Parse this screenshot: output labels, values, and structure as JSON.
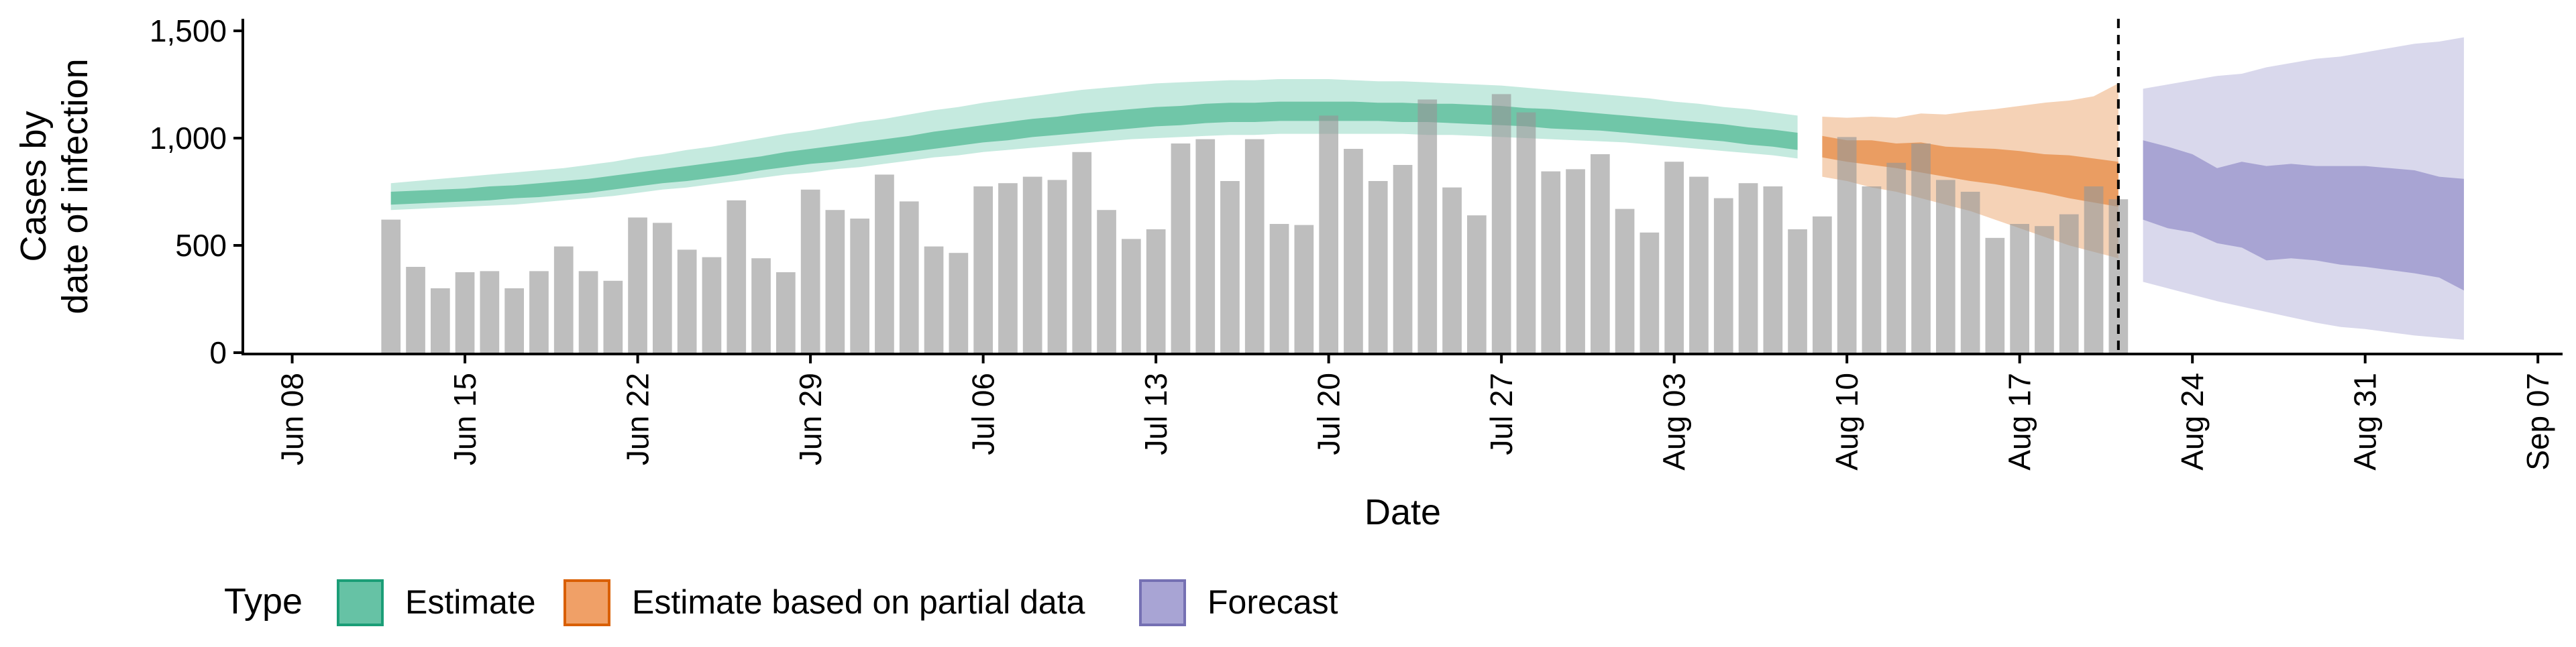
{
  "chart_data": {
    "type": "bar",
    "xlabel": "Date",
    "ylabel_lines": [
      "Cases by",
      "date of infection"
    ],
    "ylim": [
      0,
      1550
    ],
    "xlim": [
      "2020-06-06",
      "2020-09-08"
    ],
    "y_ticks": [
      0,
      500,
      1000,
      1500
    ],
    "y_tick_labels": [
      "0",
      "500",
      "1,000",
      "1,500"
    ],
    "x_ticks": [
      "2020-06-08",
      "2020-06-15",
      "2020-06-22",
      "2020-06-29",
      "2020-07-06",
      "2020-07-13",
      "2020-07-20",
      "2020-07-27",
      "2020-08-03",
      "2020-08-10",
      "2020-08-17",
      "2020-08-24",
      "2020-08-31",
      "2020-09-07"
    ],
    "x_tick_labels": [
      "Jun 08",
      "Jun 15",
      "Jun 22",
      "Jun 29",
      "Jul 06",
      "Jul 13",
      "Jul 20",
      "Jul 27",
      "Aug 03",
      "Aug 10",
      "Aug 17",
      "Aug 24",
      "Aug 31",
      "Sep 07"
    ],
    "forecast_date": "2020-08-21",
    "grid": false,
    "legend_position": "bottom",
    "legend_title": "Type",
    "legend": [
      {
        "label": "Estimate",
        "fill": "#66c2a5",
        "stroke": "#1b9e77"
      },
      {
        "label": "Estimate based on partial data",
        "fill": "#f0a067",
        "stroke": "#d95f02"
      },
      {
        "label": "Forecast",
        "fill": "#a8a4d4",
        "stroke": "#7570b3"
      }
    ],
    "bars": {
      "start_date": "2020-06-12",
      "color": "#bdbdbd",
      "values": [
        620,
        400,
        300,
        375,
        380,
        300,
        380,
        495,
        380,
        335,
        630,
        605,
        480,
        445,
        710,
        440,
        375,
        760,
        665,
        625,
        830,
        705,
        495,
        465,
        775,
        790,
        820,
        805,
        935,
        665,
        530,
        575,
        975,
        995,
        800,
        995,
        600,
        595,
        1105,
        950,
        800,
        875,
        1180,
        770,
        640,
        1205,
        1120,
        845,
        855,
        925,
        670,
        560,
        890,
        820,
        720,
        790,
        775,
        575,
        635,
        1005,
        775,
        885,
        975,
        805,
        750,
        535,
        600,
        590,
        645,
        775,
        715
      ]
    },
    "series": [
      {
        "name": "Estimate",
        "color": "#1b9e77",
        "start_date": "2020-06-12",
        "lower90": [
          665,
          670,
          675,
          680,
          685,
          690,
          700,
          710,
          720,
          730,
          745,
          760,
          770,
          785,
          800,
          815,
          830,
          840,
          855,
          865,
          880,
          895,
          910,
          920,
          935,
          945,
          955,
          965,
          975,
          985,
          995,
          1000,
          1005,
          1010,
          1015,
          1015,
          1020,
          1020,
          1020,
          1020,
          1020,
          1020,
          1015,
          1015,
          1010,
          1005,
          1000,
          995,
          990,
          985,
          980,
          970,
          960,
          950,
          940,
          930,
          920,
          905
        ],
        "lower50": [
          690,
          695,
          700,
          705,
          710,
          720,
          725,
          735,
          745,
          760,
          775,
          790,
          800,
          815,
          830,
          850,
          865,
          880,
          890,
          905,
          920,
          935,
          950,
          965,
          980,
          990,
          1005,
          1015,
          1025,
          1035,
          1045,
          1055,
          1060,
          1070,
          1075,
          1075,
          1080,
          1080,
          1080,
          1080,
          1080,
          1075,
          1075,
          1070,
          1065,
          1060,
          1055,
          1045,
          1040,
          1035,
          1025,
          1015,
          1005,
          995,
          985,
          970,
          960,
          945
        ],
        "upper50": [
          750,
          755,
          760,
          765,
          775,
          780,
          790,
          800,
          810,
          825,
          840,
          855,
          870,
          885,
          900,
          915,
          935,
          950,
          965,
          980,
          995,
          1010,
          1030,
          1045,
          1060,
          1075,
          1090,
          1100,
          1115,
          1125,
          1135,
          1145,
          1150,
          1160,
          1165,
          1165,
          1170,
          1170,
          1170,
          1170,
          1165,
          1165,
          1160,
          1160,
          1155,
          1150,
          1140,
          1135,
          1125,
          1115,
          1105,
          1095,
          1085,
          1075,
          1065,
          1050,
          1040,
          1025
        ],
        "upper90": [
          790,
          800,
          810,
          820,
          830,
          840,
          850,
          860,
          875,
          890,
          910,
          925,
          945,
          960,
          980,
          1000,
          1020,
          1035,
          1055,
          1075,
          1090,
          1110,
          1130,
          1145,
          1165,
          1180,
          1195,
          1210,
          1225,
          1235,
          1245,
          1255,
          1260,
          1265,
          1270,
          1270,
          1275,
          1275,
          1275,
          1270,
          1265,
          1265,
          1260,
          1255,
          1250,
          1245,
          1235,
          1225,
          1215,
          1205,
          1195,
          1185,
          1170,
          1160,
          1145,
          1135,
          1120,
          1105
        ]
      },
      {
        "name": "Estimate based on partial data",
        "color": "#d95f02",
        "start_date": "2020-08-09",
        "lower90": [
          820,
          800,
          770,
          750,
          720,
          690,
          660,
          620,
          580,
          540,
          500,
          470,
          440
        ],
        "lower50": [
          910,
          890,
          875,
          860,
          840,
          820,
          800,
          785,
          765,
          745,
          720,
          700,
          680
        ],
        "upper50": [
          1010,
          990,
          990,
          975,
          980,
          960,
          955,
          950,
          940,
          925,
          920,
          905,
          890
        ],
        "upper90": [
          1100,
          1095,
          1100,
          1095,
          1115,
          1110,
          1125,
          1135,
          1150,
          1165,
          1175,
          1195,
          1255
        ]
      },
      {
        "name": "Forecast",
        "color": "#7570b3",
        "start_date": "2020-08-22",
        "lower90": [
          330,
          300,
          270,
          240,
          215,
          190,
          165,
          140,
          120,
          110,
          95,
          80,
          70,
          60
        ],
        "lower50": [
          620,
          580,
          560,
          510,
          490,
          430,
          440,
          430,
          410,
          400,
          385,
          370,
          350,
          290
        ],
        "upper50": [
          990,
          960,
          925,
          860,
          890,
          870,
          880,
          870,
          870,
          870,
          860,
          850,
          820,
          810
        ],
        "upper90": [
          1230,
          1250,
          1270,
          1290,
          1300,
          1330,
          1350,
          1370,
          1380,
          1400,
          1420,
          1440,
          1450,
          1470
        ]
      }
    ]
  }
}
